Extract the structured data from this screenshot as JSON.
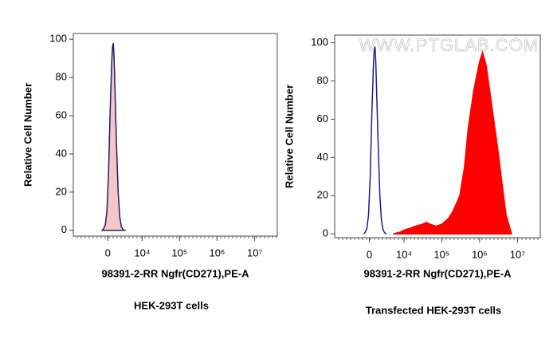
{
  "chart_data": [
    {
      "type": "area",
      "title": "HEK-293T cells",
      "xlabel": "98391-2-RR Ngfr(CD271),PE-A",
      "ylabel": "Relative Cell Number",
      "xscale": "biexponential",
      "xlim": [
        -10000,
        40000000
      ],
      "ylim": [
        -3,
        103
      ],
      "xticks": [
        0,
        {
          "value": 10000,
          "label": "10⁴"
        },
        {
          "value": 100000,
          "label": "10⁵"
        },
        {
          "value": 1000000,
          "label": "10⁶"
        },
        {
          "value": 10000000,
          "label": "10⁷"
        }
      ],
      "yticks": [
        0,
        20,
        40,
        60,
        80,
        100
      ],
      "series": [
        {
          "color": "#1c1c72",
          "fill": "#f6c6c6",
          "x": [
            -862,
            -609,
            -363,
            -121,
            121,
            363,
            609,
            734,
            862,
            990,
            1121,
            1392,
            1677,
            1980,
            2300,
            2640,
            3005
          ],
          "values": [
            0,
            1,
            3,
            10,
            30,
            62,
            88,
            96,
            98,
            90,
            75,
            45,
            20,
            7,
            2,
            0.5,
            0
          ]
        }
      ]
    },
    {
      "type": "area",
      "title": "Transfected HEK-293T cells",
      "xlabel": "98391-2-RR Ngfr(CD271),PE-A",
      "ylabel": "Relative Cell Number",
      "watermark": "WWW.PTGLAB.COM",
      "xscale": "biexponential",
      "xlim": [
        -10000,
        40000000
      ],
      "ylim": [
        -2,
        104
      ],
      "xticks": [
        0,
        {
          "value": 10000,
          "label": "10⁴"
        },
        {
          "value": 100000,
          "label": "10⁵"
        },
        {
          "value": 1000000,
          "label": "10⁶"
        },
        {
          "value": 10000000,
          "label": "10⁷"
        }
      ],
      "yticks": [
        0,
        20,
        40,
        60,
        80,
        100
      ],
      "series": [
        {
          "color": "#ff0000",
          "fill": "#ff0000",
          "x": [
            5000,
            8000,
            10000,
            15000,
            20000,
            30000,
            40000,
            50000,
            70000,
            100000,
            150000,
            200000,
            300000,
            400000,
            500000,
            700000,
            1000000,
            1200000,
            1500000,
            2000000,
            3000000,
            4000000,
            5000000,
            7000000
          ],
          "values": [
            0,
            1,
            2,
            3,
            4,
            5,
            6,
            5,
            4,
            5,
            8,
            12,
            20,
            35,
            55,
            75,
            90,
            95,
            88,
            70,
            45,
            25,
            10,
            0
          ]
        },
        {
          "color": "#1c1c8c",
          "fill": null,
          "x": [
            -862,
            -609,
            -363,
            -121,
            121,
            363,
            609,
            734,
            862,
            990,
            1121,
            1392,
            1677,
            1980,
            2300,
            2640,
            3005
          ],
          "values": [
            0,
            1,
            3,
            10,
            30,
            62,
            88,
            96,
            98,
            90,
            75,
            45,
            20,
            7,
            2,
            0.5,
            0
          ]
        }
      ]
    }
  ]
}
